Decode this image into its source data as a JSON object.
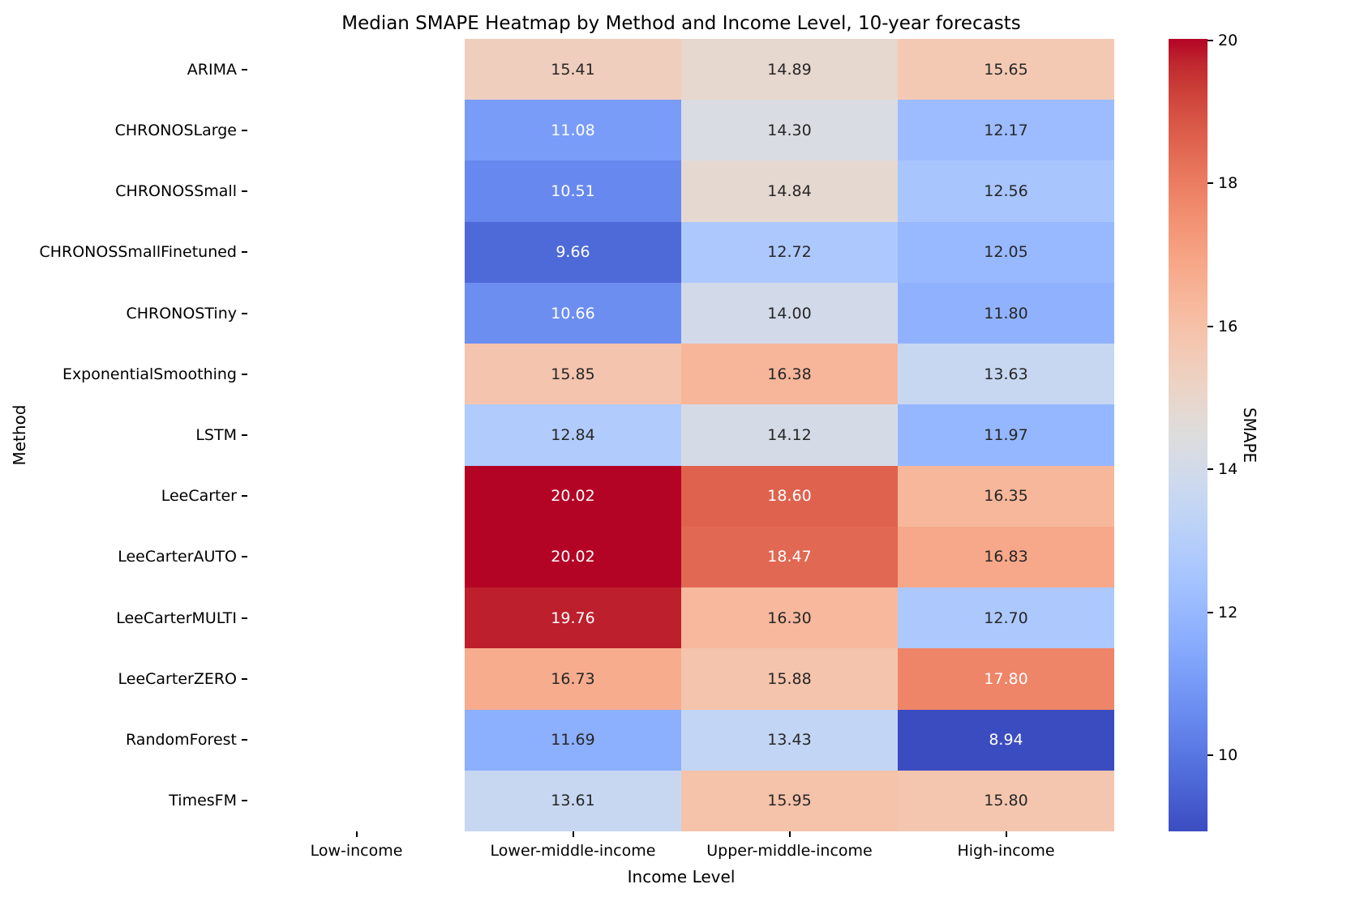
{
  "chart_data": {
    "type": "heatmap",
    "title": "Median SMAPE Heatmap by Method and Income Level, 10-year forecasts",
    "xlabel": "Income Level",
    "ylabel": "Method",
    "colorbar_label": "SMAPE",
    "colormap": "coolwarm",
    "vmin": 8.94,
    "vmax": 20.02,
    "colorbar_ticks": [
      10,
      12,
      14,
      16,
      18,
      20
    ],
    "grid": false,
    "legend_position": "colorbar-right",
    "columns": [
      "Low-income",
      "Lower-middle-income",
      "Upper-middle-income",
      "High-income"
    ],
    "rows": [
      "ARIMA",
      "CHRONOSLarge",
      "CHRONOSSmall",
      "CHRONOSSmallFinetuned",
      "CHRONOSTiny",
      "ExponentialSmoothing",
      "LSTM",
      "LeeCarter",
      "LeeCarterAUTO",
      "LeeCarterMULTI",
      "LeeCarterZERO",
      "RandomForest",
      "TimesFM"
    ],
    "values": [
      [
        null,
        15.41,
        14.89,
        15.65
      ],
      [
        null,
        11.08,
        14.3,
        12.17
      ],
      [
        null,
        10.51,
        14.84,
        12.56
      ],
      [
        null,
        9.66,
        12.72,
        12.05
      ],
      [
        null,
        10.66,
        14.0,
        11.8
      ],
      [
        null,
        15.85,
        16.38,
        13.63
      ],
      [
        null,
        12.84,
        14.12,
        11.97
      ],
      [
        null,
        20.02,
        18.6,
        16.35
      ],
      [
        null,
        20.02,
        18.47,
        16.83
      ],
      [
        null,
        19.76,
        16.3,
        12.7
      ],
      [
        null,
        16.73,
        15.88,
        17.8
      ],
      [
        null,
        11.69,
        13.43,
        8.94
      ],
      [
        null,
        13.61,
        15.95,
        15.8
      ]
    ],
    "value_decimals": 2
  },
  "colors": {
    "background": "#ffffff",
    "annotation_dark": "#262626",
    "annotation_light": "#ffffff",
    "colormap_low": "#3b4cc0",
    "colormap_mid": "#dddddd",
    "colormap_high": "#b40426",
    "tick": "#000000"
  }
}
